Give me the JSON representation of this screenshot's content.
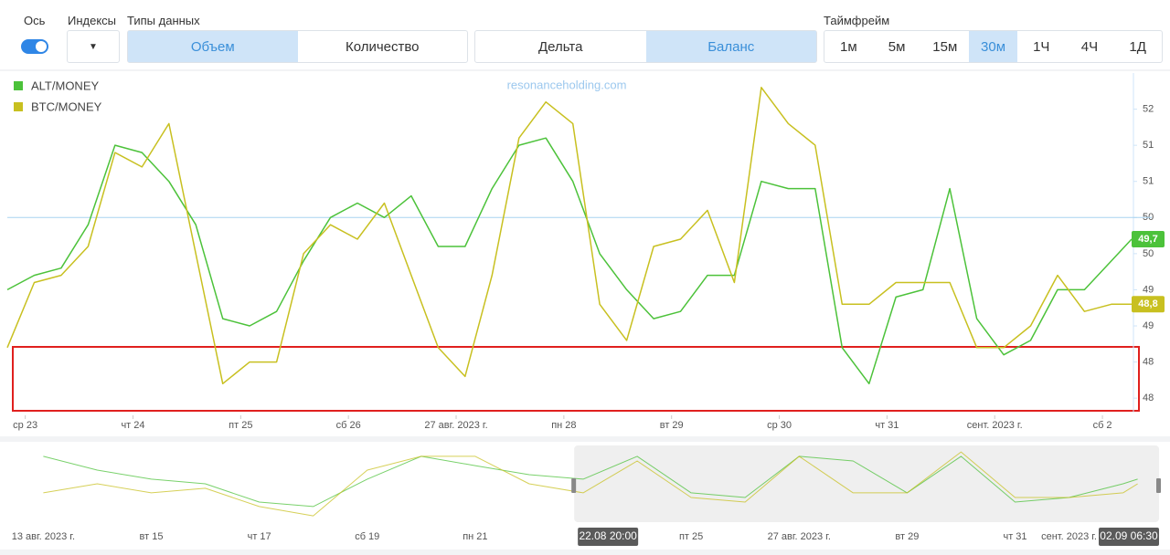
{
  "toolbar": {
    "axis_label": "Ось",
    "axis_on": true,
    "indices_label": "Индексы",
    "data_types": {
      "label": "Типы данных",
      "options": [
        "Объем",
        "Количество"
      ],
      "selected": 0
    },
    "mode": {
      "options": [
        "Дельта",
        "Баланс"
      ],
      "selected": 1
    },
    "timeframe": {
      "label": "Таймфрейм",
      "options": [
        "1м",
        "5м",
        "15м",
        "30м",
        "1Ч",
        "4Ч",
        "1Д"
      ],
      "selected": 3
    }
  },
  "chart_data": {
    "type": "line",
    "watermark": "resonanceholding.com",
    "x": [
      0,
      6,
      12,
      18,
      24,
      30,
      36,
      42,
      48,
      54,
      60,
      66,
      72,
      78,
      84,
      90,
      96,
      102,
      108,
      114,
      120,
      126,
      132,
      138,
      144,
      150,
      156,
      162,
      168,
      174,
      180,
      186,
      192,
      198,
      204,
      210,
      216,
      222,
      228,
      234,
      240,
      246,
      250.5
    ],
    "xlim": [
      0,
      250.5
    ],
    "xticks": [
      {
        "value": 4,
        "label": "ср 23"
      },
      {
        "value": 28,
        "label": "чт 24"
      },
      {
        "value": 52,
        "label": "пт 25"
      },
      {
        "value": 76,
        "label": "сб 26"
      },
      {
        "value": 100,
        "label": "27 авг. 2023 г."
      },
      {
        "value": 124,
        "label": "пн 28"
      },
      {
        "value": 148,
        "label": "вт 29"
      },
      {
        "value": 172,
        "label": "ср 30"
      },
      {
        "value": 196,
        "label": "чт 31"
      },
      {
        "value": 220,
        "label": "сент. 2023 г."
      },
      {
        "value": 244,
        "label": "сб 2"
      }
    ],
    "ylim": [
      47.3,
      52.0
    ],
    "yticks": [
      {
        "value": 51.5,
        "label": "52"
      },
      {
        "value": 51,
        "label": "51"
      },
      {
        "value": 50.5,
        "label": "51"
      },
      {
        "value": 50,
        "label": "50"
      },
      {
        "value": 49.5,
        "label": "50"
      },
      {
        "value": 49,
        "label": "49"
      },
      {
        "value": 48.5,
        "label": "49"
      },
      {
        "value": 48,
        "label": "48"
      },
      {
        "value": 47.5,
        "label": "48"
      }
    ],
    "reference_line": 50,
    "series": [
      {
        "name": "ALT/MONEY",
        "color": "#4cc23a",
        "end_label": "49,7",
        "values": [
          49.0,
          49.2,
          49.3,
          49.9,
          51.0,
          50.9,
          50.5,
          49.9,
          48.6,
          48.5,
          48.7,
          49.4,
          50.0,
          50.2,
          50.0,
          50.3,
          49.6,
          49.6,
          50.4,
          51.0,
          51.1,
          50.5,
          49.5,
          49.0,
          48.6,
          48.7,
          49.2,
          49.2,
          50.5,
          50.4,
          50.4,
          48.2,
          47.7,
          48.9,
          49.0,
          50.4,
          48.6,
          48.1,
          48.3,
          49.0,
          49.0,
          49.4,
          49.7
        ]
      },
      {
        "name": "BTC/MONEY",
        "color": "#c8c020",
        "end_label": "48,8",
        "values": [
          48.2,
          49.1,
          49.2,
          49.6,
          50.9,
          50.7,
          51.3,
          49.5,
          47.7,
          48.0,
          48.0,
          49.5,
          49.9,
          49.7,
          50.2,
          49.2,
          48.2,
          47.8,
          49.2,
          51.1,
          51.6,
          51.3,
          48.8,
          48.3,
          49.6,
          49.7,
          50.1,
          49.1,
          51.8,
          51.3,
          51.0,
          48.8,
          48.8,
          49.1,
          49.1,
          49.1,
          48.2,
          48.2,
          48.5,
          49.2,
          48.7,
          48.8,
          48.8
        ]
      }
    ]
  },
  "navigator": {
    "type": "line",
    "x": [
      0,
      24,
      48,
      72,
      96,
      120,
      144,
      168,
      192,
      216,
      240,
      264,
      288,
      312,
      336,
      360,
      384,
      408,
      432,
      456,
      480,
      486.5
    ],
    "xlim": [
      -16,
      496
    ],
    "ylim": [
      47.3,
      52.0
    ],
    "xticks": [
      {
        "value": 0,
        "label": "13 авг. 2023 г."
      },
      {
        "value": 48,
        "label": "вт 15"
      },
      {
        "value": 96,
        "label": "чт 17"
      },
      {
        "value": 144,
        "label": "сб 19"
      },
      {
        "value": 192,
        "label": "пн 21"
      },
      {
        "value": 288,
        "label": "пт 25"
      },
      {
        "value": 336,
        "label": "27 авг. 2023 г."
      },
      {
        "value": 384,
        "label": "вт 29"
      },
      {
        "value": 432,
        "label": "чт 31"
      },
      {
        "value": 456,
        "label": "сент. 2023 г."
      }
    ],
    "range": [
      {
        "value": 236,
        "label": "22.08 20:00"
      },
      {
        "value": 486.5,
        "label": "02.09 06:30"
      }
    ],
    "series": [
      {
        "color": "#4cc23a",
        "values": [
          51.45,
          50.62,
          50.07,
          49.79,
          48.68,
          48.41,
          50.07,
          51.45,
          50.89,
          50.34,
          50.07,
          51.45,
          49.24,
          48.96,
          51.45,
          51.17,
          49.24,
          51.45,
          48.68,
          48.96,
          49.79,
          50.07
        ]
      },
      {
        "color": "#c8c020",
        "values": [
          49.24,
          49.79,
          49.24,
          49.52,
          48.41,
          47.85,
          50.62,
          51.45,
          51.45,
          49.79,
          49.24,
          51.17,
          48.96,
          48.68,
          51.45,
          49.24,
          49.24,
          51.72,
          48.96,
          48.96,
          49.24,
          49.79
        ]
      }
    ]
  }
}
